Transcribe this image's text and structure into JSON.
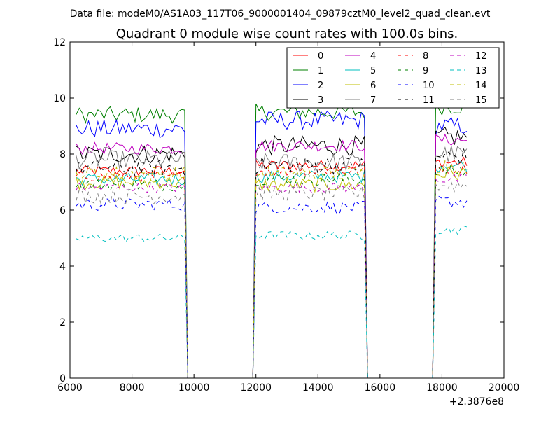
{
  "suptitle": "Data file: modeM0/AS1A03_117T06_9000001404_09879cztM0_level2_quad_clean.evt",
  "chart_data": {
    "type": "line",
    "title": "Quadrant 0 module wise count rates with 100.0s bins.",
    "xlabel": "",
    "ylabel": "",
    "xlim": [
      6000,
      20000
    ],
    "ylim": [
      0,
      12
    ],
    "x_offset_label": "+2.3876e8",
    "xticks": [
      6000,
      8000,
      10000,
      12000,
      14000,
      16000,
      18000,
      20000
    ],
    "xtick_labels": [
      "6000",
      "8000",
      "10000",
      "12000",
      "14000",
      "16000",
      "18000",
      "20000"
    ],
    "yticks": [
      0,
      2,
      4,
      6,
      8,
      10,
      12
    ],
    "ytick_labels": [
      "0",
      "2",
      "4",
      "6",
      "8",
      "10",
      "12"
    ],
    "grid": false,
    "legend_position": "top-right",
    "bin_size": 100,
    "segments": [
      {
        "start": 6200,
        "end": 9700
      },
      {
        "start": 12000,
        "end": 15500
      },
      {
        "start": 17800,
        "end": 18800
      }
    ],
    "gap_value": 0,
    "series": [
      {
        "name": "0",
        "color": "#ff0000",
        "style": "solid",
        "level": 7.4,
        "seg_levels": [
          7.4,
          7.6,
          7.7
        ]
      },
      {
        "name": "1",
        "color": "#008000",
        "style": "solid",
        "level": 9.4,
        "seg_levels": [
          9.4,
          9.5,
          9.7
        ]
      },
      {
        "name": "2",
        "color": "#0000ff",
        "style": "solid",
        "level": 8.9,
        "seg_levels": [
          8.9,
          9.2,
          9.0
        ]
      },
      {
        "name": "3",
        "color": "#000000",
        "style": "solid",
        "level": 8.0,
        "seg_levels": [
          8.0,
          8.3,
          8.6
        ]
      },
      {
        "name": "4",
        "color": "#bf00bf",
        "style": "solid",
        "level": 8.2,
        "seg_levels": [
          8.2,
          8.3,
          8.5
        ]
      },
      {
        "name": "5",
        "color": "#00bfbf",
        "style": "solid",
        "level": 7.1,
        "seg_levels": [
          7.1,
          7.2,
          7.6
        ]
      },
      {
        "name": "6",
        "color": "#bfbf00",
        "style": "solid",
        "level": 7.0,
        "seg_levels": [
          7.0,
          6.9,
          7.3
        ]
      },
      {
        "name": "7",
        "color": "#808080",
        "style": "solid",
        "level": 7.8,
        "seg_levels": [
          7.8,
          7.7,
          8.0
        ]
      },
      {
        "name": "8",
        "color": "#ff0000",
        "style": "dashed",
        "level": 7.2,
        "seg_levels": [
          7.2,
          7.4,
          7.5
        ]
      },
      {
        "name": "9",
        "color": "#008000",
        "style": "dashed",
        "level": 6.9,
        "seg_levels": [
          6.9,
          7.1,
          7.4
        ]
      },
      {
        "name": "10",
        "color": "#0000ff",
        "style": "dashed",
        "level": 6.2,
        "seg_levels": [
          6.2,
          6.1,
          6.3
        ]
      },
      {
        "name": "11",
        "color": "#000000",
        "style": "dashed",
        "level": 7.5,
        "seg_levels": [
          7.5,
          7.6,
          7.9
        ]
      },
      {
        "name": "12",
        "color": "#bf00bf",
        "style": "dashed",
        "level": 6.8,
        "seg_levels": [
          6.8,
          6.8,
          7.1
        ]
      },
      {
        "name": "13",
        "color": "#00bfbf",
        "style": "dashed",
        "level": 5.0,
        "seg_levels": [
          5.0,
          5.1,
          5.3
        ]
      },
      {
        "name": "14",
        "color": "#bfbf00",
        "style": "dashed",
        "level": 7.3,
        "seg_levels": [
          7.3,
          7.3,
          7.6
        ]
      },
      {
        "name": "15",
        "color": "#808080",
        "style": "dashed",
        "level": 6.5,
        "seg_levels": [
          6.5,
          6.6,
          6.9
        ]
      }
    ]
  }
}
